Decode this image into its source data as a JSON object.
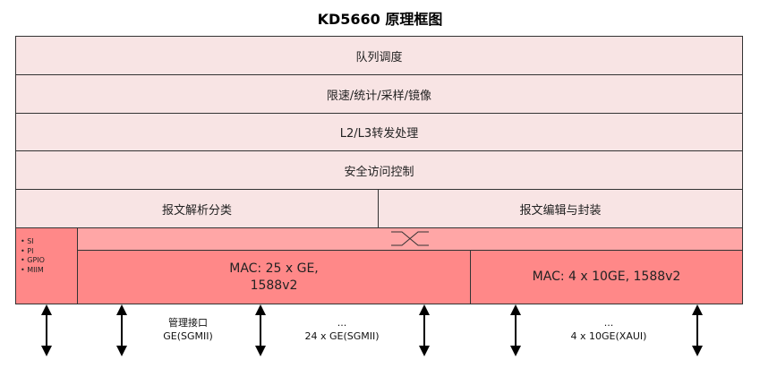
{
  "title": "KD5660 原理框图",
  "layers": [
    "队列调度",
    "限速/统计/采样/镜像",
    "L2/L3转发处理",
    "安全访问控制"
  ],
  "parse": "报文解析分类",
  "edit": "报文编辑与封装",
  "left_items": [
    "SI",
    "PI",
    "GPIO",
    "MIIM"
  ],
  "mac_ge": {
    "line1": "MAC: 25 x GE,",
    "line2": "1588v2"
  },
  "mac_10ge": "MAC: 4 x 10GE, 1588v2",
  "ports": {
    "mgmt": {
      "line1": "管理接口",
      "line2": "GE(SGMII)"
    },
    "ge": {
      "line1": "...",
      "line2": "24 x GE(SGMII)"
    },
    "xge": {
      "line1": "...",
      "line2": "4 x 10GE(XAUI)"
    }
  },
  "colors": {
    "layer": "#f8e4e4",
    "switch": "#ffa6a6",
    "mac": "#ff8888"
  }
}
